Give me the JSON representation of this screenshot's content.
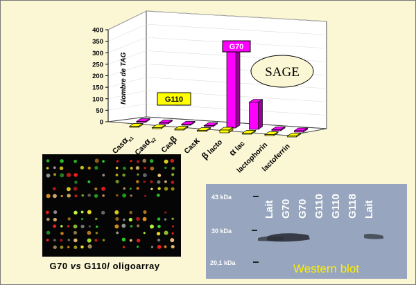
{
  "chart_data": {
    "type": "bar",
    "categories": [
      "Casα s1",
      "Casα s2",
      "Casβ",
      "Casκ",
      "β lacto",
      "α lac",
      "lactophorin",
      "lactoferrin"
    ],
    "category_parts": [
      {
        "base": "Cas",
        "greek": "α",
        "sub": "s1"
      },
      {
        "base": "Cas",
        "greek": "α",
        "sub": "s2"
      },
      {
        "base": "Cas",
        "greek": "β",
        "sub": ""
      },
      {
        "base": "Cas",
        "greek": "κ",
        "sub": ""
      },
      {
        "base": "",
        "greek": "β",
        "sub": "",
        "suffix": " lacto"
      },
      {
        "base": "",
        "greek": "α",
        "sub": "",
        "suffix": " lac"
      },
      {
        "base": "lactophorin",
        "greek": "",
        "sub": ""
      },
      {
        "base": "lactoferrin",
        "greek": "",
        "sub": ""
      }
    ],
    "series": [
      {
        "name": "G70",
        "color": "#ff00ff",
        "values": [
          2,
          1,
          0,
          0,
          355,
          118,
          5,
          6
        ]
      },
      {
        "name": "G110",
        "color": "#ffff00",
        "values": [
          0,
          0,
          0,
          0,
          12,
          3,
          0,
          0
        ]
      }
    ],
    "ylabel": "Nombre de TAG",
    "yticks": [
      0,
      50,
      100,
      150,
      200,
      250,
      300,
      350,
      400
    ],
    "ylim": [
      0,
      400
    ],
    "annotation": "SAGE"
  },
  "array_caption": {
    "part1": "G70 ",
    "part2": "vs",
    "part3": " G110/ oligoarray"
  },
  "western": {
    "size_markers": [
      "43 kDa",
      "30 kDa",
      "20,1 kDa"
    ],
    "lanes": [
      "Lait",
      "G70",
      "G70",
      "G110",
      "G110",
      "G118",
      "Lait"
    ],
    "title": "Western blot"
  },
  "colors": {
    "background": "#fbf7d4",
    "g70": "#ff00ff",
    "g110": "#ffff00",
    "blot": "#97a6be"
  }
}
